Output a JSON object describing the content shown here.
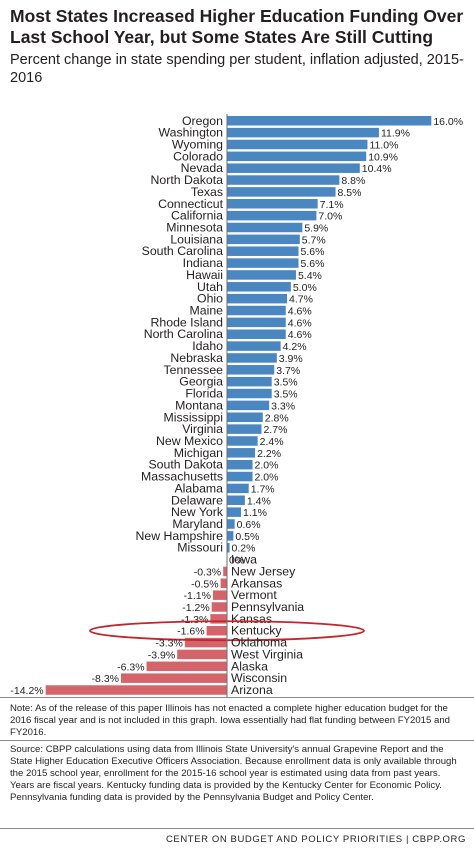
{
  "title": "Most States Increased Higher Education Funding Over Last School Year, but Some States Are Still Cutting",
  "subtitle": "Percent change in state spending per student, inflation adjusted, 2015-2016",
  "note": "Note: As of the release of this paper Illinois has not enacted a complete higher education budget for the 2016 fiscal year and is not included in this graph. Iowa essentially had flat funding between FY2015 and FY2016.",
  "source": "Source: CBPP calculations using data from Illinois State University's annual Grapevine Report and the State Higher Education Executive Officers Association. Because enrollment data is only available through the 2015 school year, enrollment for the 2015-16 school year is estimated using data from past years. Years are fiscal years. Kentucky funding data is provided by the Kentucky Center for Economic Policy. Pennsylvania funding data is provided by the Pennsylvania Budget and Policy Center.",
  "footer": "CENTER ON BUDGET AND POLICY PRIORITIES | CBPP.ORG",
  "colors": {
    "positive": "#4a86c0",
    "negative": "#d5646a",
    "highlight": "#c0272d"
  },
  "chart_data": {
    "type": "bar",
    "orientation": "horizontal",
    "highlighted_category": "Kentucky",
    "categories": [
      "Oregon",
      "Washington",
      "Wyoming",
      "Colorado",
      "Nevada",
      "North Dakota",
      "Texas",
      "Connecticut",
      "California",
      "Minnesota",
      "Louisiana",
      "South Carolina",
      "Indiana",
      "Hawaii",
      "Utah",
      "Ohio",
      "Maine",
      "Rhode Island",
      "North Carolina",
      "Idaho",
      "Nebraska",
      "Tennessee",
      "Georgia",
      "Florida",
      "Montana",
      "Mississippi",
      "Virginia",
      "New Mexico",
      "Michigan",
      "South Dakota",
      "Massachusetts",
      "Alabama",
      "Delaware",
      "New York",
      "Maryland",
      "New Hampshire",
      "Missouri",
      "Iowa",
      "New Jersey",
      "Arkansas",
      "Vermont",
      "Pennsylvania",
      "Kansas",
      "Kentucky",
      "Oklahoma",
      "West Virginia",
      "Alaska",
      "Wisconsin",
      "Arizona"
    ],
    "values": [
      16.0,
      11.9,
      11.0,
      10.9,
      10.4,
      8.8,
      8.5,
      7.1,
      7.0,
      5.9,
      5.7,
      5.6,
      5.6,
      5.4,
      5.0,
      4.7,
      4.6,
      4.6,
      4.6,
      4.2,
      3.9,
      3.7,
      3.5,
      3.5,
      3.3,
      2.8,
      2.7,
      2.4,
      2.2,
      2.0,
      2.0,
      1.7,
      1.4,
      1.1,
      0.6,
      0.5,
      0.2,
      0,
      -0.3,
      -0.5,
      -1.1,
      -1.2,
      -1.3,
      -1.6,
      -3.3,
      -3.9,
      -6.3,
      -8.3,
      -14.2
    ],
    "labels": [
      "16.0%",
      "11.9%",
      "11.0%",
      "10.9%",
      "10.4%",
      "8.8%",
      "8.5%",
      "7.1%",
      "7.0%",
      "5.9%",
      "5.7%",
      "5.6%",
      "5.6%",
      "5.4%",
      "5.0%",
      "4.7%",
      "4.6%",
      "4.6%",
      "4.6%",
      "4.2%",
      "3.9%",
      "3.7%",
      "3.5%",
      "3.5%",
      "3.3%",
      "2.8%",
      "2.7%",
      "2.4%",
      "2.2%",
      "2.0%",
      "2.0%",
      "1.7%",
      "1.4%",
      "1.1%",
      "0.6%",
      "0.5%",
      "0.2%",
      "0%",
      "-0.3%",
      "-0.5%",
      "-1.1%",
      "-1.2%",
      "-1.3%",
      "-1.6%",
      "-3.3%",
      "-3.9%",
      "-6.3%",
      "-8.3%",
      "-14.2%"
    ],
    "xlim": [
      -14.2,
      16.0
    ]
  }
}
